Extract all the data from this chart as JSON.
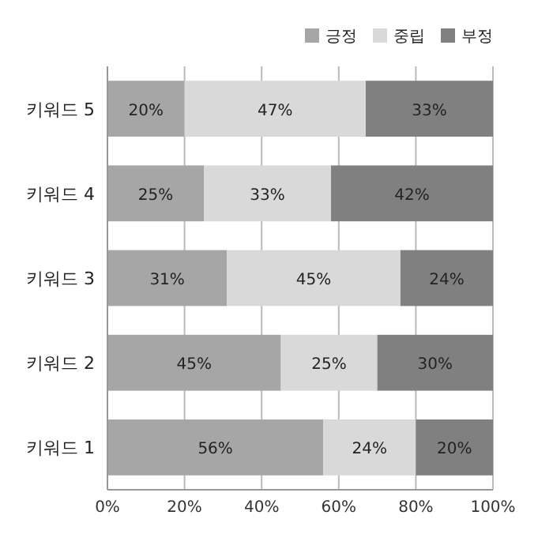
{
  "chart_data": {
    "type": "bar",
    "orientation": "horizontal",
    "stacked": true,
    "categories": [
      "키워드 5",
      "키워드 4",
      "키워드 3",
      "키워드 2",
      "키워드 1"
    ],
    "series": [
      {
        "name": "긍정",
        "color": "#a6a6a6",
        "values": [
          20,
          25,
          31,
          45,
          56
        ],
        "value_labels": [
          "20%",
          "25%",
          "31%",
          "45%",
          "56%"
        ]
      },
      {
        "name": "중립",
        "color": "#d9d9d9",
        "values": [
          47,
          33,
          45,
          25,
          24
        ],
        "value_labels": [
          "47%",
          "33%",
          "45%",
          "25%",
          "24%"
        ]
      },
      {
        "name": "부정",
        "color": "#808080",
        "values": [
          33,
          42,
          24,
          30,
          20
        ],
        "value_labels": [
          "33%",
          "42%",
          "24%",
          "30%",
          "20%"
        ]
      }
    ],
    "xlim": [
      0,
      100
    ],
    "xticks": [
      {
        "value": 0,
        "label": "0%"
      },
      {
        "value": 20,
        "label": "20%"
      },
      {
        "value": 40,
        "label": "40%"
      },
      {
        "value": 60,
        "label": "60%"
      },
      {
        "value": 80,
        "label": "80%"
      },
      {
        "value": 100,
        "label": "100%"
      }
    ],
    "grid": "x",
    "legend": "top right"
  }
}
